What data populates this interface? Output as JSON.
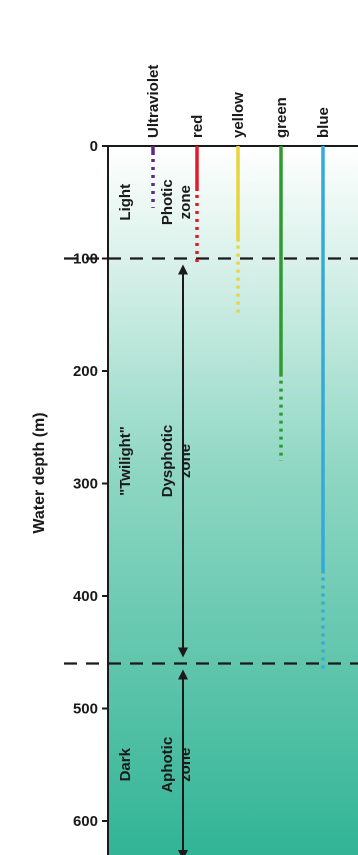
{
  "diagram": {
    "y_axis": {
      "label": "Water depth (m)",
      "unit": "m",
      "range": [
        0,
        640
      ],
      "ticks": [
        "0",
        "100",
        "200",
        "300",
        "400",
        "500",
        "600"
      ]
    },
    "wavelengths": [
      {
        "label": "Ultraviolet",
        "color": "#5a2a86",
        "solid_to": 8,
        "dotted_to": 55
      },
      {
        "label": "red",
        "color": "#e21b2c",
        "solid_to": 40,
        "dotted_to": 105
      },
      {
        "label": "yellow",
        "color": "#e8d43c",
        "solid_to": 85,
        "dotted_to": 148
      },
      {
        "label": "green",
        "color": "#2e9b2e",
        "solid_to": 205,
        "dotted_to": 280
      },
      {
        "label": "blue",
        "color": "#35a9d8",
        "solid_to": 380,
        "dotted_to": 465
      }
    ],
    "boundaries": [
      100,
      460
    ],
    "zones": [
      {
        "light": "Light",
        "zone_word": "Photic",
        "zone_suffix": "zone",
        "from": 0,
        "to": 100
      },
      {
        "light": "\"Twilight\"",
        "zone_word": "Dysphotic",
        "zone_suffix": "zone",
        "from": 100,
        "to": 460
      },
      {
        "light": "Dark",
        "zone_word": "Aphotic",
        "zone_suffix": "zone",
        "from": 460,
        "to": 640
      }
    ],
    "colors": {
      "surface_water": "#ffffff",
      "deep_water": "#2fb394",
      "axis": "#1a1a1a"
    }
  }
}
